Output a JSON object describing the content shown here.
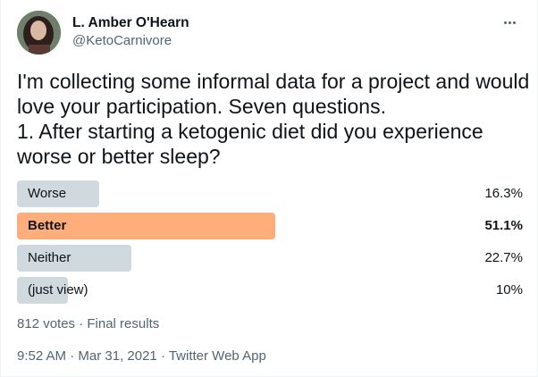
{
  "author": {
    "display_name": "L. Amber O'Hearn",
    "handle": "@KetoCarnivore"
  },
  "tweet": {
    "lines": [
      "I'm collecting some informal data for a project and would",
      "love your participation. Seven questions.",
      "1. After starting a ketogenic diet did you experience",
      "worse or better sleep?"
    ]
  },
  "poll": {
    "choices": [
      {
        "label": "Worse",
        "percent_text": "16.3%",
        "percent": 16.3,
        "winner": false
      },
      {
        "label": "Better",
        "percent_text": "51.1%",
        "percent": 51.1,
        "winner": true
      },
      {
        "label": "Neither",
        "percent_text": "22.7%",
        "percent": 22.7,
        "winner": false
      },
      {
        "label": "(just view)",
        "percent_text": "10%",
        "percent": 10,
        "winner": false
      }
    ],
    "meta": "812 votes · Final results"
  },
  "timestamp": {
    "time": "9:52 AM",
    "separator": " · ",
    "date": "Mar 31, 2021",
    "source": "Twitter Web App"
  },
  "colors": {
    "bar": "#cfd9de",
    "winner_bar": "#ffad7a",
    "secondary_text": "#536471"
  },
  "icons": {
    "more": "more-horizontal-icon"
  }
}
